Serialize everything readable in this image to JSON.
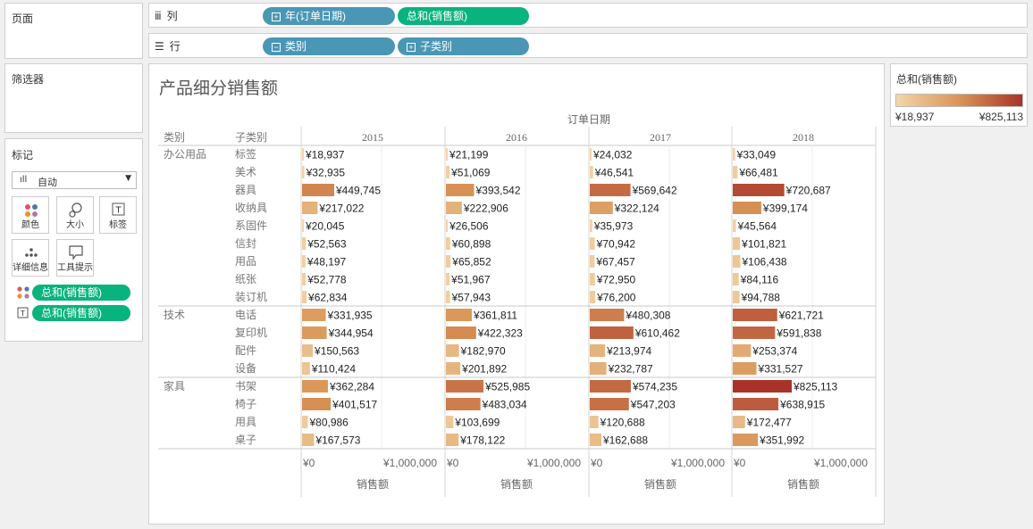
{
  "pages_panel": {
    "title": "页面"
  },
  "filters_panel": {
    "title": "筛选器"
  },
  "marks_panel": {
    "title": "标记",
    "mark_type": "自动",
    "buttons": [
      {
        "label": "颜色",
        "icon": "color-dots-icon"
      },
      {
        "label": "大小",
        "icon": "size-icon"
      },
      {
        "label": "标签",
        "icon": "label-T-icon"
      },
      {
        "label": "详细信息",
        "icon": "detail-dots-icon"
      },
      {
        "label": "工具提示",
        "icon": "tooltip-icon"
      }
    ],
    "fields": [
      {
        "icon": "color-dots-icon",
        "label": "总和(销售额)"
      },
      {
        "icon": "label-T-icon",
        "label": "总和(销售额)"
      }
    ]
  },
  "columns_shelf": {
    "label": "列",
    "pills": [
      "年(订单日期)",
      "总和(销售额)"
    ]
  },
  "rows_shelf": {
    "label": "行",
    "pills": [
      "类别",
      "子类别"
    ]
  },
  "legend": {
    "title": "总和(销售额)",
    "min_label": "¥18,937",
    "max_label": "¥825,113",
    "color_low": "#f4d6a8",
    "color_high": "#a9332a"
  },
  "chart_data": {
    "type": "bar",
    "title": "产品细分销售额",
    "column_group_label": "订单日期",
    "row_header_1": "类别",
    "row_header_2": "子类别",
    "xlabel": "销售额",
    "xlim": [
      0,
      1000000
    ],
    "tick_labels": [
      "¥0",
      "¥1,000,000"
    ],
    "years": [
      "2015",
      "2016",
      "2017",
      "2018"
    ],
    "categories": [
      {
        "name": "办公用品",
        "subcategories": [
          {
            "name": "标签",
            "values": [
              18937,
              21199,
              24032,
              33049
            ],
            "labels": [
              "¥18,937",
              "¥21,199",
              "¥24,032",
              "¥33,049"
            ]
          },
          {
            "name": "美术",
            "values": [
              32935,
              51069,
              46541,
              66481
            ],
            "labels": [
              "¥32,935",
              "¥51,069",
              "¥46,541",
              "¥66,481"
            ]
          },
          {
            "name": "器具",
            "values": [
              449745,
              393542,
              569642,
              720687
            ],
            "labels": [
              "¥449,745",
              "¥393,542",
              "¥569,642",
              "¥720,687"
            ]
          },
          {
            "name": "收纳具",
            "values": [
              217022,
              222906,
              322124,
              399174
            ],
            "labels": [
              "¥217,022",
              "¥222,906",
              "¥322,124",
              "¥399,174"
            ]
          },
          {
            "name": "系固件",
            "values": [
              20045,
              26506,
              35973,
              45564
            ],
            "labels": [
              "¥20,045",
              "¥26,506",
              "¥35,973",
              "¥45,564"
            ]
          },
          {
            "name": "信封",
            "values": [
              52563,
              60898,
              70942,
              101821
            ],
            "labels": [
              "¥52,563",
              "¥60,898",
              "¥70,942",
              "¥101,821"
            ]
          },
          {
            "name": "用品",
            "values": [
              48197,
              65852,
              67457,
              106438
            ],
            "labels": [
              "¥48,197",
              "¥65,852",
              "¥67,457",
              "¥106,438"
            ]
          },
          {
            "name": "纸张",
            "values": [
              52778,
              51967,
              72950,
              84116
            ],
            "labels": [
              "¥52,778",
              "¥51,967",
              "¥72,950",
              "¥84,116"
            ]
          },
          {
            "name": "装订机",
            "values": [
              62834,
              57943,
              76200,
              94788
            ],
            "labels": [
              "¥62,834",
              "¥57,943",
              "¥76,200",
              "¥94,788"
            ]
          }
        ]
      },
      {
        "name": "技术",
        "subcategories": [
          {
            "name": "电话",
            "values": [
              331935,
              361811,
              480308,
              621721
            ],
            "labels": [
              "¥331,935",
              "¥361,811",
              "¥480,308",
              "¥621,721"
            ]
          },
          {
            "name": "复印机",
            "values": [
              344954,
              422323,
              610462,
              591838
            ],
            "labels": [
              "¥344,954",
              "¥422,323",
              "¥610,462",
              "¥591,838"
            ]
          },
          {
            "name": "配件",
            "values": [
              150563,
              182970,
              213974,
              253374
            ],
            "labels": [
              "¥150,563",
              "¥182,970",
              "¥213,974",
              "¥253,374"
            ]
          },
          {
            "name": "设备",
            "values": [
              110424,
              201892,
              232787,
              331527
            ],
            "labels": [
              "¥110,424",
              "¥201,892",
              "¥232,787",
              "¥331,527"
            ]
          }
        ]
      },
      {
        "name": "家具",
        "subcategories": [
          {
            "name": "书架",
            "values": [
              362284,
              525985,
              574235,
              825113
            ],
            "labels": [
              "¥362,284",
              "¥525,985",
              "¥574,235",
              "¥825,113"
            ]
          },
          {
            "name": "椅子",
            "values": [
              401517,
              483034,
              547203,
              638915
            ],
            "labels": [
              "¥401,517",
              "¥483,034",
              "¥547,203",
              "¥638,915"
            ]
          },
          {
            "name": "用具",
            "values": [
              80986,
              103699,
              120688,
              172477
            ],
            "labels": [
              "¥80,986",
              "¥103,699",
              "¥120,688",
              "¥172,477"
            ]
          },
          {
            "name": "桌子",
            "values": [
              167573,
              178122,
              162688,
              351992
            ],
            "labels": [
              "¥167,573",
              "¥178,122",
              "¥162,688",
              "¥351,992"
            ]
          }
        ]
      }
    ]
  }
}
